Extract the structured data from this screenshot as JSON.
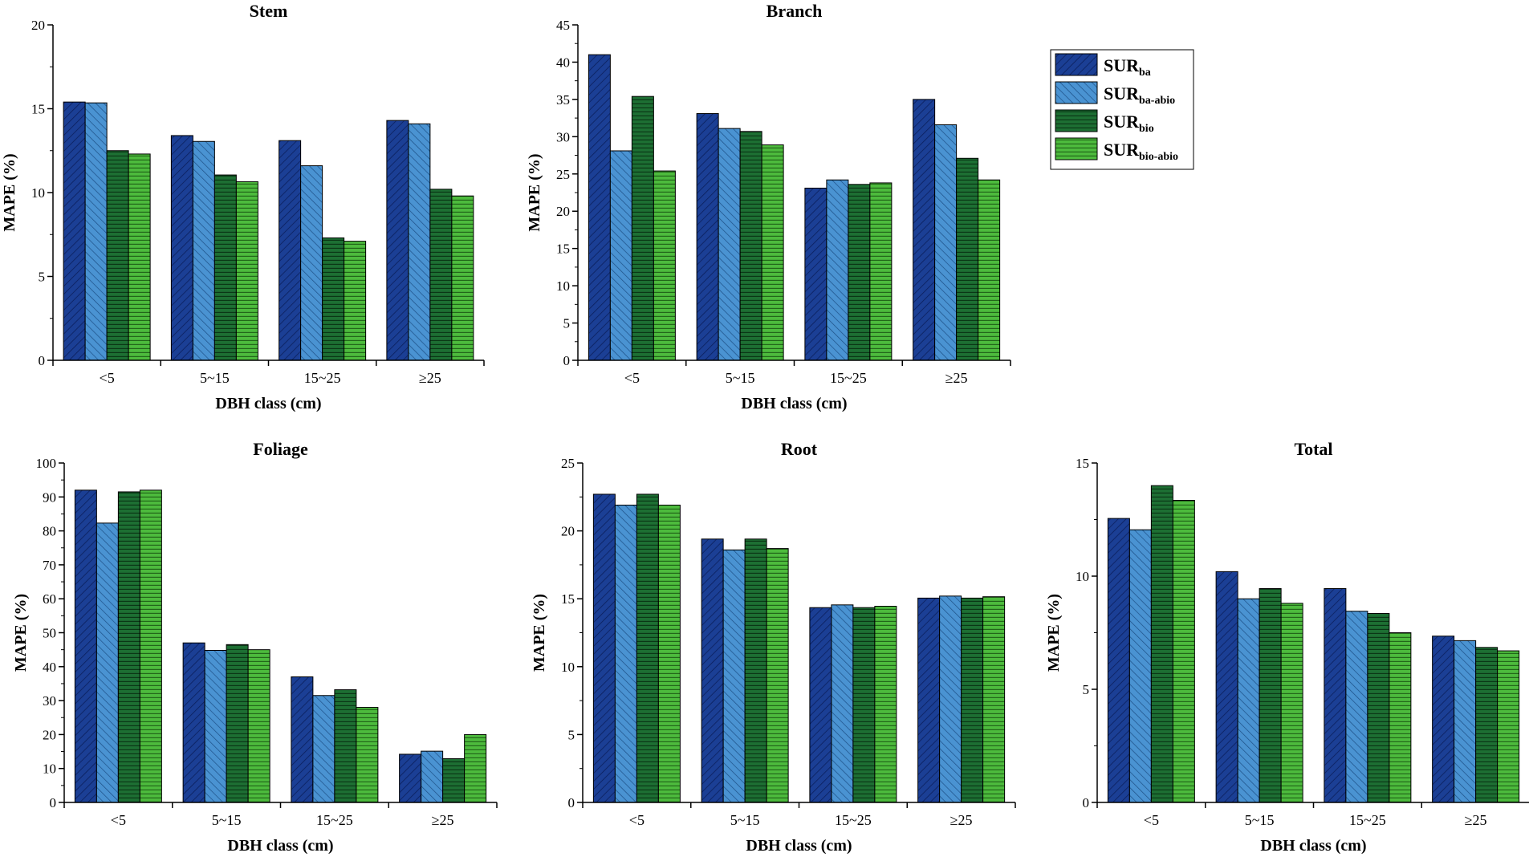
{
  "chart_data": [
    {
      "type": "bar",
      "title": "Stem",
      "xlabel": "DBH class (cm)",
      "ylabel": "MAPE (%)",
      "ylim": [
        0,
        20
      ],
      "yticks": [
        0,
        5,
        10,
        15,
        20
      ],
      "categories": [
        "<5",
        "5~15",
        "15~25",
        "≥25"
      ],
      "series": [
        {
          "name": "SUR_ba",
          "values": [
            15.4,
            13.4,
            13.1,
            14.3
          ]
        },
        {
          "name": "SUR_ba-abio",
          "values": [
            15.35,
            13.05,
            11.6,
            14.1
          ]
        },
        {
          "name": "SUR_bio",
          "values": [
            12.5,
            11.05,
            7.3,
            10.2
          ]
        },
        {
          "name": "SUR_bio-abio",
          "values": [
            12.3,
            10.65,
            7.1,
            9.8
          ]
        }
      ]
    },
    {
      "type": "bar",
      "title": "Branch",
      "xlabel": "DBH class (cm)",
      "ylabel": "MAPE (%)",
      "ylim": [
        0,
        45
      ],
      "yticks": [
        0,
        5,
        10,
        15,
        20,
        25,
        30,
        35,
        40,
        45
      ],
      "categories": [
        "<5",
        "5~15",
        "15~25",
        "≥25"
      ],
      "series": [
        {
          "name": "SUR_ba",
          "values": [
            41.0,
            33.1,
            23.1,
            35.0
          ]
        },
        {
          "name": "SUR_ba-abio",
          "values": [
            28.1,
            31.1,
            24.2,
            31.6
          ]
        },
        {
          "name": "SUR_bio",
          "values": [
            35.4,
            30.7,
            23.6,
            27.1
          ]
        },
        {
          "name": "SUR_bio-abio",
          "values": [
            25.4,
            28.9,
            23.8,
            24.2
          ]
        }
      ]
    },
    {
      "type": "bar",
      "title": "Foliage",
      "xlabel": "DBH class (cm)",
      "ylabel": "MAPE (%)",
      "ylim": [
        0,
        100
      ],
      "yticks": [
        0,
        10,
        20,
        30,
        40,
        50,
        60,
        70,
        80,
        90,
        100
      ],
      "categories": [
        "<5",
        "5~15",
        "15~25",
        "≥25"
      ],
      "series": [
        {
          "name": "SUR_ba",
          "values": [
            92.0,
            47.0,
            37.0,
            14.2
          ]
        },
        {
          "name": "SUR_ba-abio",
          "values": [
            82.3,
            44.8,
            31.5,
            15.1
          ]
        },
        {
          "name": "SUR_bio",
          "values": [
            91.5,
            46.5,
            33.2,
            12.9
          ]
        },
        {
          "name": "SUR_bio-abio",
          "values": [
            92.0,
            45.0,
            28.0,
            20.0
          ]
        }
      ]
    },
    {
      "type": "bar",
      "title": "Root",
      "xlabel": "DBH class (cm)",
      "ylabel": "MAPE (%)",
      "ylim": [
        0,
        25
      ],
      "yticks": [
        0,
        5,
        10,
        15,
        20,
        25
      ],
      "categories": [
        "<5",
        "5~15",
        "15~25",
        "≥25"
      ],
      "series": [
        {
          "name": "SUR_ba",
          "values": [
            22.7,
            19.4,
            14.35,
            15.05
          ]
        },
        {
          "name": "SUR_ba-abio",
          "values": [
            21.9,
            18.6,
            14.55,
            15.2
          ]
        },
        {
          "name": "SUR_bio",
          "values": [
            22.7,
            19.4,
            14.35,
            15.05
          ]
        },
        {
          "name": "SUR_bio-abio",
          "values": [
            21.9,
            18.7,
            14.45,
            15.15
          ]
        }
      ]
    },
    {
      "type": "bar",
      "title": "Total",
      "xlabel": "DBH class (cm)",
      "ylabel": "MAPE (%)",
      "ylim": [
        0,
        15
      ],
      "yticks": [
        0,
        5,
        10,
        15
      ],
      "categories": [
        "<5",
        "5~15",
        "15~25",
        "≥25"
      ],
      "series": [
        {
          "name": "SUR_ba",
          "values": [
            12.55,
            10.2,
            9.45,
            7.35
          ]
        },
        {
          "name": "SUR_ba-abio",
          "values": [
            12.05,
            9.0,
            8.45,
            7.15
          ]
        },
        {
          "name": "SUR_bio",
          "values": [
            14.0,
            9.45,
            8.35,
            6.85
          ]
        },
        {
          "name": "SUR_bio-abio",
          "values": [
            13.35,
            8.8,
            7.5,
            6.7
          ]
        }
      ]
    }
  ],
  "legend": {
    "items": [
      {
        "base": "SUR",
        "sub": "ba",
        "fill": "#1b3f95",
        "pattern": "hatch-diag-right",
        "stroke": "#0b1f5c"
      },
      {
        "base": "SUR",
        "sub": "ba-abio",
        "fill": "#4a93d2",
        "pattern": "hatch-diag-left",
        "stroke": "#1d4f86"
      },
      {
        "base": "SUR",
        "sub": "bio",
        "fill": "#1d6f33",
        "pattern": "hatch-horizontal",
        "stroke": "#0b3716"
      },
      {
        "base": "SUR",
        "sub": "bio-abio",
        "fill": "#4dbb3d",
        "pattern": "hatch-horizontal",
        "stroke": "#23661a"
      }
    ]
  }
}
